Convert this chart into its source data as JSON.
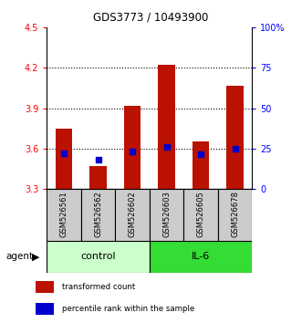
{
  "title": "GDS3773 / 10493900",
  "samples": [
    "GSM526561",
    "GSM526562",
    "GSM526602",
    "GSM526603",
    "GSM526605",
    "GSM526678"
  ],
  "bar_tops": [
    3.75,
    3.47,
    3.92,
    4.22,
    3.65,
    4.07
  ],
  "bar_base": 3.3,
  "blue_markers": [
    3.565,
    3.52,
    3.578,
    3.61,
    3.558,
    3.6
  ],
  "ylim": [
    3.3,
    4.5
  ],
  "yticks": [
    3.3,
    3.6,
    3.9,
    4.2,
    4.5
  ],
  "right_yticks": [
    0,
    25,
    50,
    75,
    100
  ],
  "right_ylabels": [
    "0",
    "25",
    "50",
    "75",
    "100%"
  ],
  "bar_color": "#bb1100",
  "blue_color": "#0000cc",
  "control_label": "control",
  "il6_label": "IL-6",
  "agent_label": "agent",
  "control_bg": "#ccffcc",
  "il6_bg": "#33dd33",
  "sample_bg": "#cccccc",
  "legend_bar_label": "transformed count",
  "legend_blue_label": "percentile rank within the sample",
  "bar_width": 0.5,
  "dotted_lines": [
    3.6,
    3.9,
    4.2
  ],
  "n_control": 3,
  "n_il6": 3
}
